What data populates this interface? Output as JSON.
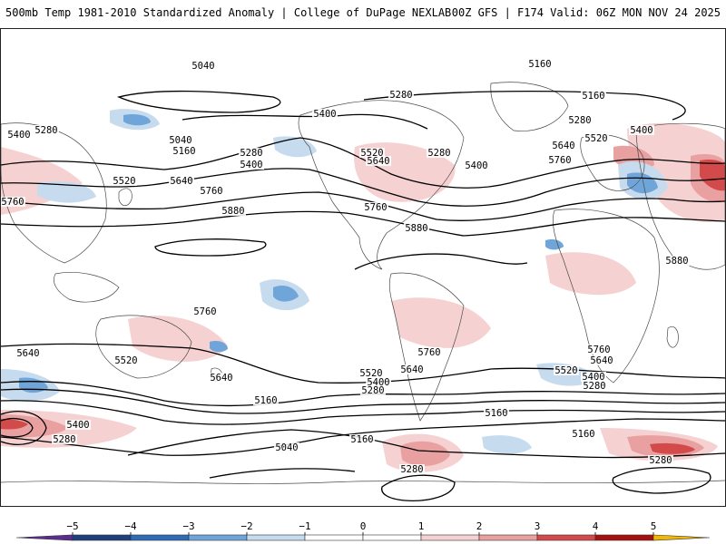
{
  "header": {
    "left_title": "500mb Temp 1981-2010 Standardized Anomaly | College of DuPage NEXLAB",
    "right_title": "00Z GFS | F174 Valid: 06Z MON NOV 24 2025"
  },
  "colors": {
    "anomaly_neg5": "#5a2d91",
    "anomaly_neg4": "#1f3f7a",
    "anomaly_neg3": "#2e6bb5",
    "anomaly_neg2": "#6fa5d8",
    "anomaly_neg1": "#c7dbef",
    "anomaly_zero": "#ffffff",
    "anomaly_pos1": "#f6d1d1",
    "anomaly_pos2": "#e9a0a0",
    "anomaly_pos3": "#d34a4a",
    "anomaly_pos4": "#a51010",
    "anomaly_pos5": "#f2b705",
    "contour": "#000000",
    "coastline": "#4a4a4a"
  },
  "colorbar": {
    "ticks": [
      {
        "label": "−5",
        "value": -5
      },
      {
        "label": "−4",
        "value": -4
      },
      {
        "label": "−3",
        "value": -3
      },
      {
        "label": "−2",
        "value": -2
      },
      {
        "label": "−1",
        "value": -1
      },
      {
        "label": "0",
        "value": 0
      },
      {
        "label": "1",
        "value": 1
      },
      {
        "label": "2",
        "value": 2
      },
      {
        "label": "3",
        "value": 3
      },
      {
        "label": "4",
        "value": 4
      },
      {
        "label": "5",
        "value": 5
      }
    ]
  },
  "contours": {
    "labels": [
      "5040",
      "5160",
      "5280",
      "5400",
      "5520",
      "5640",
      "5760",
      "5880"
    ]
  }
}
